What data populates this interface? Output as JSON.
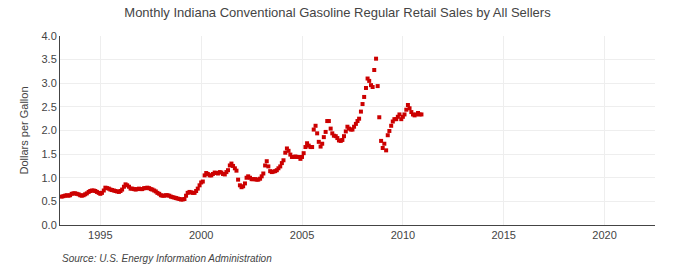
{
  "chart_data": {
    "type": "scatter",
    "title": "Monthly Indiana Conventional Gasoline Regular Retail Sales by All Sellers",
    "ylabel": "Dollars per Gallon",
    "annotations": [
      "Source: U.S. Energy Information Administration"
    ],
    "xlim": [
      1993.0,
      2022.5
    ],
    "xticks": [
      1995,
      2000,
      2005,
      2010,
      2015,
      2020
    ],
    "ylim": [
      0.0,
      4.0
    ],
    "yticks": [
      {
        "value": 0.0,
        "label": "0.0"
      },
      0.5,
      {
        "value": 1.0,
        "label": "1.0"
      },
      1.5,
      {
        "value": 2.0,
        "label": "2.0"
      },
      2.5,
      {
        "value": 3.0,
        "label": "3.0"
      },
      3.5,
      {
        "value": 4.0,
        "label": "4.0"
      }
    ],
    "grid": true,
    "color": "#cc0000",
    "marker": "square",
    "x": [
      1993.08,
      1993.17,
      1993.25,
      1993.33,
      1993.42,
      1993.5,
      1993.58,
      1993.67,
      1993.75,
      1993.83,
      1993.92,
      1994.0,
      1994.08,
      1994.17,
      1994.25,
      1994.33,
      1994.42,
      1994.5,
      1994.58,
      1994.67,
      1994.75,
      1994.83,
      1994.92,
      1995.0,
      1995.08,
      1995.17,
      1995.25,
      1995.33,
      1995.42,
      1995.5,
      1995.58,
      1995.67,
      1995.75,
      1995.83,
      1995.92,
      1996.0,
      1996.08,
      1996.17,
      1996.25,
      1996.33,
      1996.42,
      1996.5,
      1996.58,
      1996.67,
      1996.75,
      1996.83,
      1996.92,
      1997.0,
      1997.08,
      1997.17,
      1997.25,
      1997.33,
      1997.42,
      1997.5,
      1997.58,
      1997.67,
      1997.75,
      1997.83,
      1997.92,
      1998.0,
      1998.08,
      1998.17,
      1998.25,
      1998.33,
      1998.42,
      1998.5,
      1998.58,
      1998.67,
      1998.75,
      1998.83,
      1998.92,
      1999.0,
      1999.08,
      1999.17,
      1999.25,
      1999.33,
      1999.42,
      1999.5,
      1999.58,
      1999.67,
      1999.75,
      1999.83,
      1999.92,
      2000.0,
      2000.08,
      2000.17,
      2000.25,
      2000.33,
      2000.42,
      2000.5,
      2000.58,
      2000.67,
      2000.75,
      2000.83,
      2000.92,
      2001.0,
      2001.08,
      2001.17,
      2001.25,
      2001.33,
      2001.42,
      2001.5,
      2001.58,
      2001.67,
      2001.75,
      2001.83,
      2001.92,
      2002.0,
      2002.08,
      2002.17,
      2002.25,
      2002.33,
      2002.42,
      2002.5,
      2002.58,
      2002.67,
      2002.75,
      2002.83,
      2002.92,
      2003.0,
      2003.08,
      2003.17,
      2003.25,
      2003.33,
      2003.42,
      2003.5,
      2003.58,
      2003.67,
      2003.75,
      2003.83,
      2003.92,
      2004.0,
      2004.08,
      2004.17,
      2004.25,
      2004.33,
      2004.42,
      2004.5,
      2004.58,
      2004.67,
      2004.75,
      2004.83,
      2004.92,
      2005.0,
      2005.08,
      2005.17,
      2005.25,
      2005.33,
      2005.42,
      2005.5,
      2005.58,
      2005.67,
      2005.75,
      2005.83,
      2005.92,
      2006.0,
      2006.08,
      2006.17,
      2006.25,
      2006.33,
      2006.42,
      2006.5,
      2006.58,
      2006.67,
      2006.75,
      2006.83,
      2006.92,
      2007.0,
      2007.08,
      2007.17,
      2007.25,
      2007.33,
      2007.42,
      2007.5,
      2007.58,
      2007.67,
      2007.75,
      2007.83,
      2007.92,
      2008.0,
      2008.08,
      2008.17,
      2008.25,
      2008.33,
      2008.42,
      2008.5,
      2008.58,
      2008.67,
      2008.75,
      2008.83,
      2008.92,
      2009.0,
      2009.08,
      2009.17,
      2009.25,
      2009.33,
      2009.42,
      2009.5,
      2009.58,
      2009.67,
      2009.75,
      2009.83,
      2009.92,
      2010.0,
      2010.08,
      2010.17,
      2010.25,
      2010.33,
      2010.42,
      2010.5,
      2010.58,
      2010.67,
      2010.75,
      2010.83,
      2010.92
    ],
    "values": [
      0.6,
      0.61,
      0.62,
      0.63,
      0.62,
      0.63,
      0.66,
      0.67,
      0.67,
      0.66,
      0.65,
      0.63,
      0.62,
      0.63,
      0.65,
      0.67,
      0.7,
      0.72,
      0.73,
      0.73,
      0.72,
      0.7,
      0.68,
      0.66,
      0.68,
      0.73,
      0.79,
      0.78,
      0.77,
      0.75,
      0.74,
      0.73,
      0.72,
      0.71,
      0.7,
      0.72,
      0.75,
      0.81,
      0.86,
      0.84,
      0.81,
      0.77,
      0.77,
      0.76,
      0.75,
      0.76,
      0.77,
      0.76,
      0.76,
      0.78,
      0.78,
      0.79,
      0.78,
      0.76,
      0.75,
      0.73,
      0.71,
      0.68,
      0.66,
      0.63,
      0.62,
      0.62,
      0.63,
      0.63,
      0.62,
      0.6,
      0.59,
      0.58,
      0.57,
      0.56,
      0.55,
      0.54,
      0.54,
      0.55,
      0.62,
      0.68,
      0.7,
      0.69,
      0.68,
      0.68,
      0.72,
      0.77,
      0.84,
      0.9,
      0.92,
      1.05,
      1.1,
      1.08,
      1.05,
      1.05,
      1.08,
      1.11,
      1.1,
      1.09,
      1.12,
      1.11,
      1.08,
      1.07,
      1.12,
      1.16,
      1.26,
      1.3,
      1.25,
      1.2,
      1.15,
      0.96,
      0.84,
      0.8,
      0.82,
      0.88,
      1.0,
      1.03,
      1.0,
      0.97,
      0.97,
      0.97,
      0.96,
      0.96,
      0.98,
      1.03,
      1.09,
      1.26,
      1.35,
      1.24,
      1.14,
      1.12,
      1.13,
      1.14,
      1.16,
      1.2,
      1.24,
      1.31,
      1.37,
      1.53,
      1.62,
      1.57,
      1.49,
      1.44,
      1.44,
      1.45,
      1.44,
      1.44,
      1.4,
      1.44,
      1.52,
      1.65,
      1.73,
      1.68,
      1.65,
      1.65,
      2.02,
      2.1,
      1.94,
      1.76,
      1.66,
      1.72,
      1.86,
      1.97,
      2.2,
      2.2,
      2.04,
      1.94,
      1.89,
      1.88,
      1.84,
      1.79,
      1.78,
      1.8,
      1.88,
      1.98,
      2.08,
      2.04,
      2.02,
      2.02,
      2.08,
      2.14,
      2.2,
      2.25,
      2.4,
      2.56,
      2.71,
      2.9,
      3.1,
      3.05,
      2.96,
      2.92,
      3.28,
      3.52,
      2.94,
      2.28,
      1.78,
      1.63,
      1.72,
      1.58,
      1.9,
      1.99,
      2.1,
      2.19,
      2.24,
      2.24,
      2.29,
      2.34,
      2.24,
      2.29,
      2.34,
      2.44,
      2.54,
      2.47,
      2.39,
      2.34,
      2.32,
      2.34,
      2.37,
      2.34,
      2.34
    ]
  }
}
